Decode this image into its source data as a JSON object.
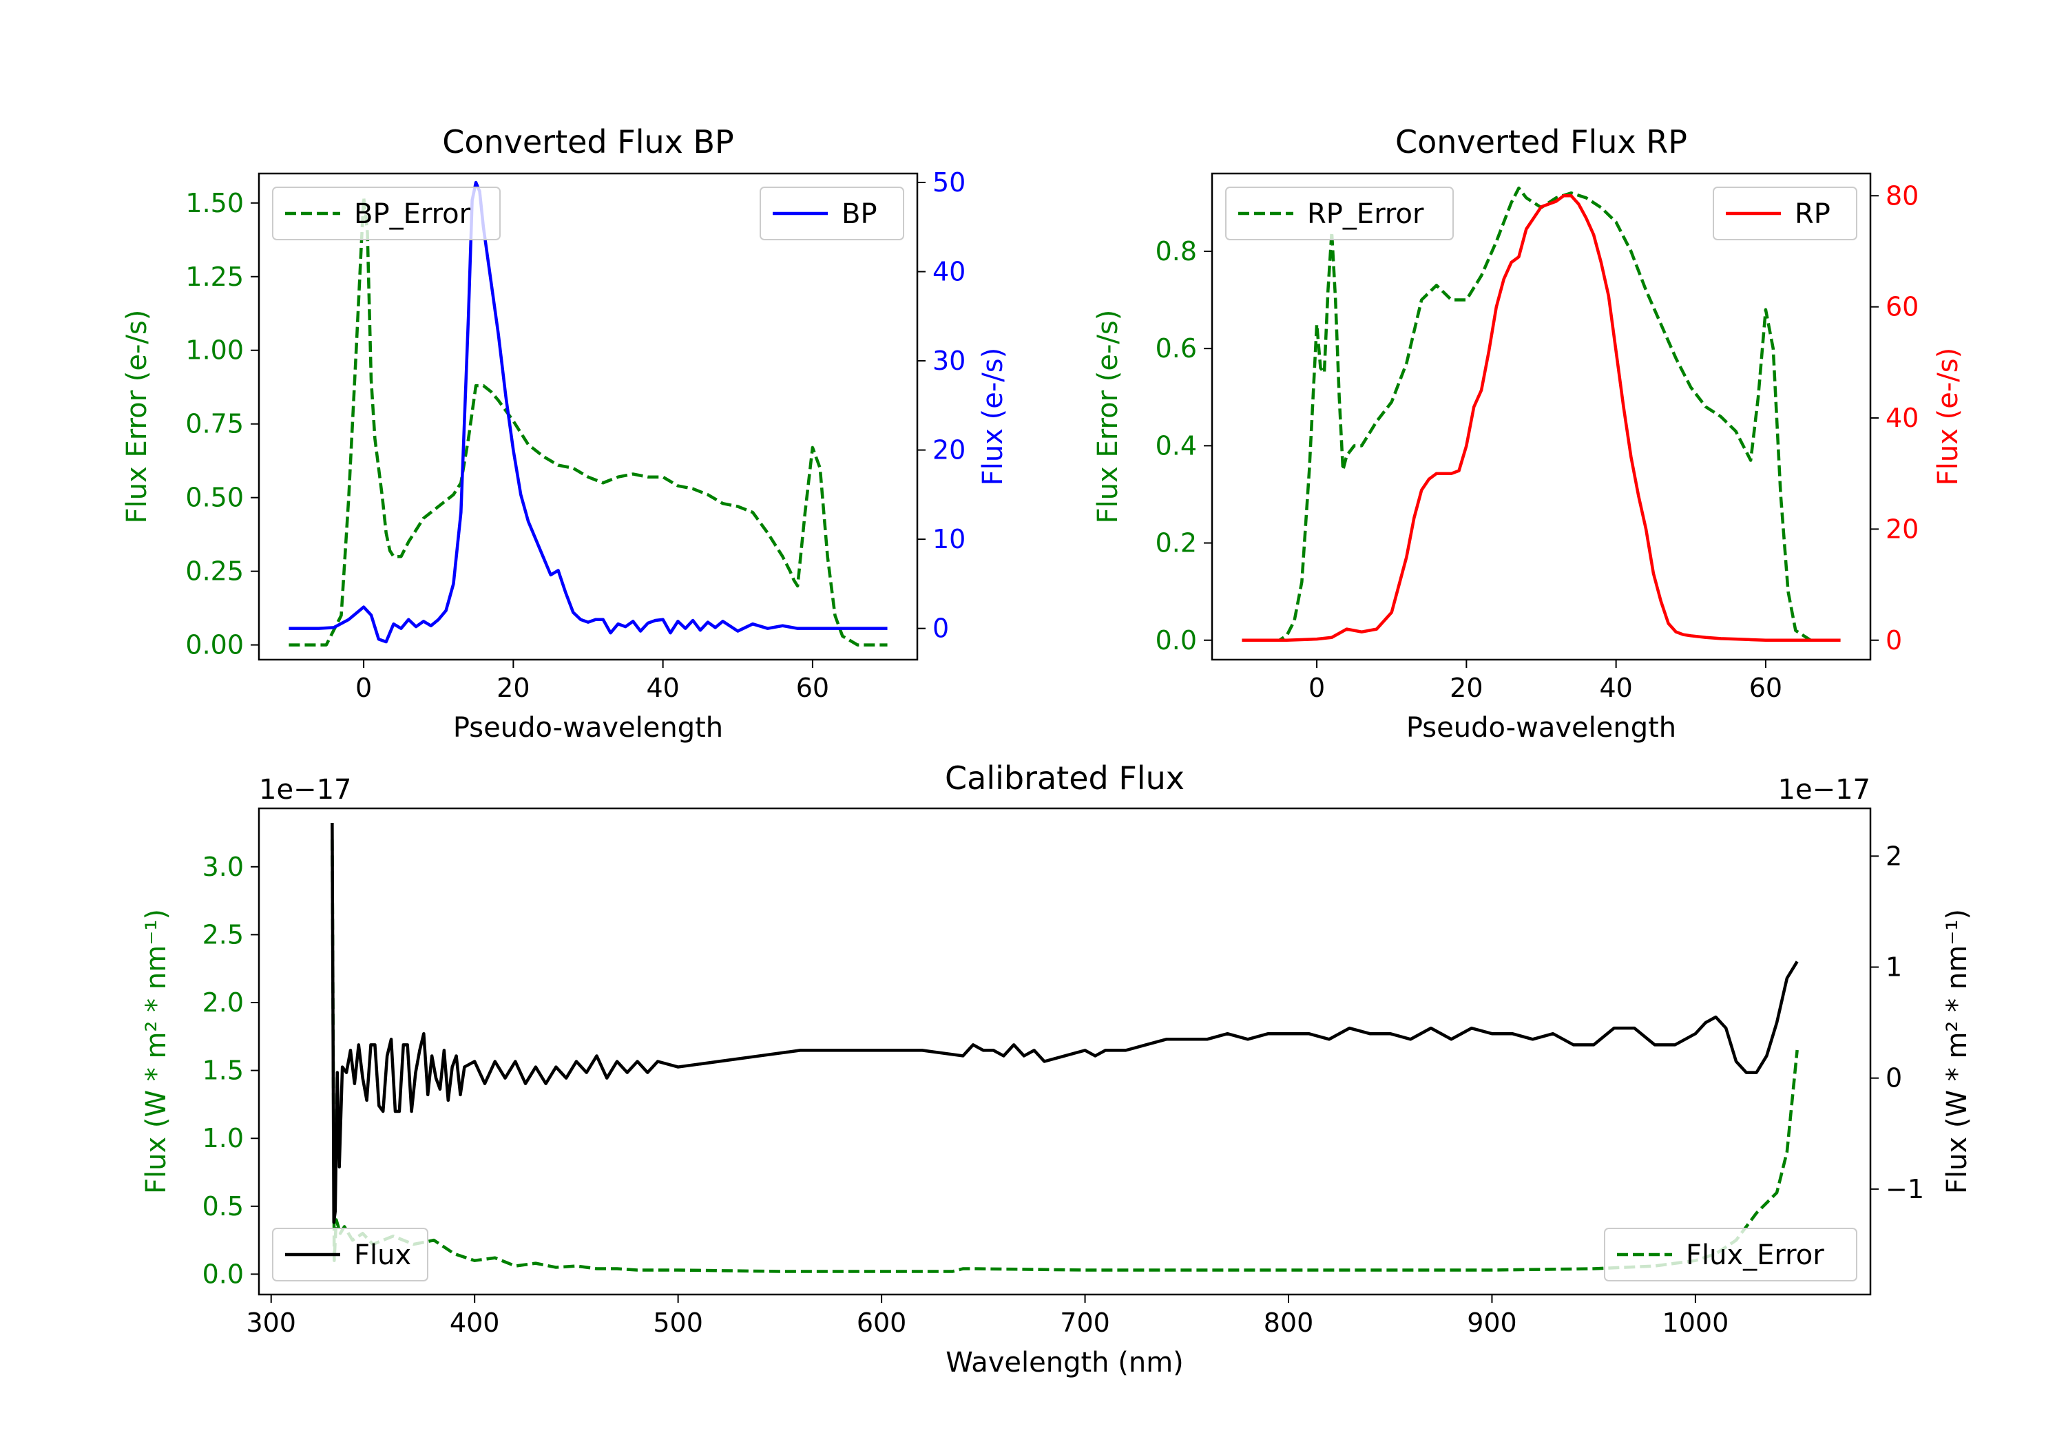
{
  "chart_data": [
    {
      "id": "bp",
      "type": "line",
      "title": "Converted Flux BP",
      "xlabel": "Pseudo-wavelength",
      "xlim": [
        -14,
        74
      ],
      "xticks": [
        0,
        20,
        40,
        60
      ],
      "left_axis": {
        "label": "Flux Error (e-/s)",
        "color": "#008000",
        "ylim": [
          -0.05,
          1.6
        ],
        "ticks": [
          0.0,
          0.25,
          0.5,
          0.75,
          1.0,
          1.25,
          1.5
        ],
        "tick_labels": [
          "0.00",
          "0.25",
          "0.50",
          "0.75",
          "1.00",
          "1.25",
          "1.50"
        ]
      },
      "right_axis": {
        "label": "Flux (e-/s)",
        "color": "#0000ff",
        "ylim": [
          -3.5,
          51
        ],
        "ticks": [
          0,
          10,
          20,
          30,
          40,
          50
        ],
        "tick_labels": [
          "0",
          "10",
          "20",
          "30",
          "40",
          "50"
        ]
      },
      "series": [
        {
          "name": "BP_Error",
          "axis": "left",
          "color": "#008000",
          "dash": true,
          "x": [
            -10,
            -5,
            -3,
            -2,
            -1,
            0,
            0.5,
            1,
            1.5,
            2,
            2.5,
            3,
            3.5,
            4,
            5,
            6,
            8,
            10,
            12,
            13,
            14,
            15,
            16,
            17,
            18,
            20,
            22,
            24,
            26,
            28,
            30,
            32,
            34,
            36,
            38,
            40,
            42,
            44,
            46,
            48,
            50,
            52,
            54,
            56,
            57,
            57.5,
            58,
            59,
            60,
            61,
            62,
            63,
            64,
            66,
            70
          ],
          "y": [
            0,
            0,
            0.1,
            0.5,
            1.0,
            1.52,
            1.4,
            0.9,
            0.7,
            0.6,
            0.5,
            0.38,
            0.32,
            0.3,
            0.3,
            0.35,
            0.43,
            0.47,
            0.51,
            0.55,
            0.7,
            0.88,
            0.88,
            0.86,
            0.83,
            0.76,
            0.68,
            0.64,
            0.61,
            0.6,
            0.57,
            0.55,
            0.57,
            0.58,
            0.57,
            0.57,
            0.54,
            0.53,
            0.51,
            0.48,
            0.47,
            0.45,
            0.38,
            0.3,
            0.25,
            0.22,
            0.2,
            0.45,
            0.67,
            0.6,
            0.3,
            0.1,
            0.03,
            0,
            0
          ]
        },
        {
          "name": "BP",
          "axis": "right",
          "color": "#0000ff",
          "dash": false,
          "x": [
            -10,
            -6,
            -4,
            -2,
            0,
            1,
            2,
            3,
            4,
            5,
            6,
            7,
            8,
            9,
            10,
            11,
            12,
            13,
            14,
            14.5,
            15,
            15.5,
            16,
            17,
            18,
            19,
            20,
            21,
            22,
            23,
            24,
            25,
            26,
            27,
            28,
            29,
            30,
            31,
            32,
            33,
            34,
            35,
            36,
            37,
            38,
            39,
            40,
            41,
            42,
            43,
            44,
            45,
            46,
            47,
            48,
            50,
            52,
            54,
            56,
            58,
            60,
            65,
            70
          ],
          "y": [
            0,
            0,
            0.1,
            1,
            2.4,
            1.5,
            -1.2,
            -1.5,
            0.5,
            0,
            1,
            0.2,
            0.8,
            0.3,
            1,
            2,
            5,
            13,
            35,
            48,
            50,
            49,
            45,
            39,
            33,
            26,
            20,
            15,
            12,
            10,
            8,
            6,
            6.5,
            4,
            1.8,
            1,
            0.7,
            1,
            1,
            -0.5,
            0.5,
            0.2,
            0.8,
            -0.3,
            0.6,
            0.9,
            1,
            -0.5,
            0.8,
            0,
            0.9,
            -0.2,
            0.7,
            0.1,
            0.8,
            -0.3,
            0.5,
            0,
            0.3,
            0,
            0,
            0,
            0
          ]
        }
      ],
      "legends": [
        {
          "position": "upper left",
          "entries": [
            {
              "label": "BP_Error",
              "series": "BP_Error"
            }
          ]
        },
        {
          "position": "upper right",
          "entries": [
            {
              "label": "BP",
              "series": "BP"
            }
          ]
        }
      ]
    },
    {
      "id": "rp",
      "type": "line",
      "title": "Converted Flux RP",
      "xlabel": "Pseudo-wavelength",
      "xlim": [
        -14,
        74
      ],
      "xticks": [
        0,
        20,
        40,
        60
      ],
      "left_axis": {
        "label": "Flux Error (e-/s)",
        "color": "#008000",
        "ylim": [
          -0.04,
          0.96
        ],
        "ticks": [
          0.0,
          0.2,
          0.4,
          0.6,
          0.8
        ],
        "tick_labels": [
          "0.0",
          "0.2",
          "0.4",
          "0.6",
          "0.8"
        ]
      },
      "right_axis": {
        "label": "Flux (e-/s)",
        "color": "#ff0000",
        "ylim": [
          -3.5,
          84
        ],
        "ticks": [
          0,
          20,
          40,
          60,
          80
        ],
        "tick_labels": [
          "0",
          "20",
          "40",
          "60",
          "80"
        ]
      },
      "series": [
        {
          "name": "RP_Error",
          "axis": "left",
          "color": "#008000",
          "dash": true,
          "x": [
            -10,
            -5,
            -4,
            -3,
            -2,
            -1,
            0,
            0.5,
            1,
            1.5,
            2,
            2.5,
            3,
            3.5,
            4,
            5,
            6,
            8,
            10,
            12,
            14,
            16,
            18,
            20,
            22,
            24,
            26,
            27,
            28,
            30,
            32,
            34,
            36,
            38,
            40,
            42,
            44,
            46,
            48,
            50,
            52,
            54,
            56,
            57,
            58,
            59,
            60,
            61,
            62,
            63,
            64,
            66,
            70
          ],
          "y": [
            0,
            0,
            0.01,
            0.04,
            0.12,
            0.35,
            0.65,
            0.56,
            0.55,
            0.72,
            0.84,
            0.7,
            0.5,
            0.35,
            0.38,
            0.4,
            0.4,
            0.45,
            0.49,
            0.57,
            0.7,
            0.73,
            0.7,
            0.7,
            0.75,
            0.82,
            0.9,
            0.93,
            0.91,
            0.89,
            0.91,
            0.92,
            0.91,
            0.89,
            0.86,
            0.8,
            0.72,
            0.65,
            0.58,
            0.52,
            0.48,
            0.46,
            0.43,
            0.4,
            0.37,
            0.5,
            0.68,
            0.6,
            0.3,
            0.1,
            0.02,
            0,
            0
          ]
        },
        {
          "name": "RP",
          "axis": "right",
          "color": "#ff0000",
          "dash": false,
          "x": [
            -10,
            -4,
            0,
            2,
            4,
            6,
            8,
            10,
            12,
            13,
            14,
            15,
            16,
            18,
            19,
            20,
            21,
            22,
            23,
            24,
            25,
            26,
            27,
            28,
            29,
            30,
            31,
            32,
            33,
            34,
            35,
            36,
            37,
            38,
            39,
            40,
            41,
            42,
            43,
            44,
            45,
            46,
            47,
            48,
            49,
            50,
            52,
            54,
            56,
            58,
            60,
            62,
            64,
            66,
            70
          ],
          "y": [
            0,
            0,
            0.2,
            0.5,
            2,
            1.5,
            2,
            5,
            15,
            22,
            27,
            29,
            30,
            30,
            30.5,
            35,
            42,
            45,
            52,
            60,
            65,
            68,
            69,
            74,
            76,
            78,
            78.5,
            79,
            80,
            80,
            78.5,
            76,
            73,
            68,
            62,
            52,
            42,
            33,
            26,
            20,
            12,
            7,
            3,
            1.5,
            1,
            0.8,
            0.5,
            0.3,
            0.2,
            0.1,
            0,
            0,
            0,
            0,
            0
          ]
        }
      ],
      "legends": [
        {
          "position": "upper left",
          "entries": [
            {
              "label": "RP_Error",
              "series": "RP_Error"
            }
          ]
        },
        {
          "position": "upper right",
          "entries": [
            {
              "label": "RP",
              "series": "RP"
            }
          ]
        }
      ]
    },
    {
      "id": "cal",
      "type": "line",
      "title": "Calibrated Flux",
      "xlabel": "Wavelength (nm)",
      "xlim": [
        294,
        1086
      ],
      "xticks": [
        300,
        400,
        500,
        600,
        700,
        800,
        900,
        1000
      ],
      "left_axis": {
        "label": "Flux (W * m² * nm⁻¹)",
        "color": "#008000",
        "offset_text": "1e−17",
        "ylim": [
          -0.15,
          3.43
        ],
        "ticks": [
          0.0,
          0.5,
          1.0,
          1.5,
          2.0,
          2.5,
          3.0
        ],
        "tick_labels": [
          "0.0",
          "0.5",
          "1.0",
          "1.5",
          "2.0",
          "2.5",
          "3.0"
        ]
      },
      "right_axis": {
        "label": "Flux (W * m² * nm⁻¹)",
        "color": "#000000",
        "offset_text": "1e−17",
        "ylim": [
          -1.95,
          2.43
        ],
        "ticks": [
          -1,
          0,
          1,
          2
        ],
        "tick_labels": [
          "−1",
          "0",
          "1",
          "2"
        ]
      },
      "series": [
        {
          "name": "Flux_Error",
          "axis": "left",
          "color": "#008000",
          "dash": true,
          "x": [
            330,
            331,
            332,
            334,
            336,
            340,
            345,
            350,
            360,
            370,
            380,
            390,
            400,
            410,
            420,
            430,
            440,
            450,
            460,
            470,
            480,
            500,
            550,
            600,
            635,
            640,
            645,
            700,
            800,
            900,
            950,
            980,
            1000,
            1010,
            1020,
            1030,
            1040,
            1045,
            1050
          ],
          "y": [
            3.2,
            0.1,
            0.4,
            0.3,
            0.35,
            0.25,
            0.3,
            0.22,
            0.28,
            0.22,
            0.25,
            0.15,
            0.1,
            0.12,
            0.06,
            0.08,
            0.05,
            0.06,
            0.04,
            0.04,
            0.03,
            0.03,
            0.02,
            0.02,
            0.02,
            0.04,
            0.04,
            0.03,
            0.03,
            0.03,
            0.04,
            0.06,
            0.1,
            0.15,
            0.25,
            0.45,
            0.6,
            0.9,
            1.65
          ]
        },
        {
          "name": "Flux",
          "axis": "right",
          "color": "#000000",
          "dash": false,
          "x": [
            330,
            330.8,
            331.5,
            332.5,
            333.5,
            335,
            337,
            339,
            341,
            343,
            345,
            347,
            349,
            351,
            353,
            355,
            357,
            359,
            361,
            363,
            365,
            367,
            369,
            371,
            373,
            375,
            377,
            379,
            381,
            383,
            385,
            387,
            389,
            391,
            393,
            395,
            400,
            405,
            410,
            415,
            420,
            425,
            430,
            435,
            440,
            445,
            450,
            455,
            460,
            465,
            470,
            475,
            480,
            485,
            490,
            500,
            520,
            540,
            560,
            600,
            620,
            640,
            645,
            650,
            655,
            660,
            665,
            670,
            675,
            680,
            690,
            700,
            705,
            710,
            720,
            730,
            740,
            750,
            760,
            770,
            780,
            790,
            800,
            810,
            820,
            830,
            840,
            850,
            860,
            870,
            880,
            890,
            900,
            910,
            920,
            930,
            940,
            950,
            960,
            970,
            980,
            990,
            1000,
            1005,
            1010,
            1015,
            1020,
            1025,
            1030,
            1035,
            1040,
            1045,
            1050
          ],
          "y": [
            2.3,
            -1.3,
            -1.2,
            0.05,
            -0.8,
            0.1,
            0.05,
            0.25,
            -0.05,
            0.3,
            0,
            -0.2,
            0.3,
            0.3,
            -0.25,
            -0.3,
            0.2,
            0.35,
            -0.3,
            -0.3,
            0.3,
            0.3,
            -0.3,
            0.05,
            0.25,
            0.4,
            -0.15,
            0.2,
            0,
            -0.1,
            0.25,
            -0.2,
            0.1,
            0.2,
            -0.15,
            0.1,
            0.15,
            -0.05,
            0.15,
            0,
            0.15,
            -0.05,
            0.1,
            -0.05,
            0.1,
            0,
            0.15,
            0.05,
            0.2,
            0,
            0.15,
            0.05,
            0.15,
            0.05,
            0.15,
            0.1,
            0.15,
            0.2,
            0.25,
            0.25,
            0.25,
            0.2,
            0.3,
            0.25,
            0.25,
            0.2,
            0.3,
            0.2,
            0.25,
            0.15,
            0.2,
            0.25,
            0.2,
            0.25,
            0.25,
            0.3,
            0.35,
            0.35,
            0.35,
            0.4,
            0.35,
            0.4,
            0.4,
            0.4,
            0.35,
            0.45,
            0.4,
            0.4,
            0.35,
            0.45,
            0.35,
            0.45,
            0.4,
            0.4,
            0.35,
            0.4,
            0.3,
            0.3,
            0.45,
            0.45,
            0.3,
            0.3,
            0.4,
            0.5,
            0.55,
            0.45,
            0.15,
            0.05,
            0.05,
            0.2,
            0.5,
            0.9,
            1.05
          ]
        }
      ],
      "legends": [
        {
          "position": "lower left",
          "entries": [
            {
              "label": "Flux",
              "series": "Flux"
            }
          ]
        },
        {
          "position": "lower right",
          "entries": [
            {
              "label": "Flux_Error",
              "series": "Flux_Error"
            }
          ]
        }
      ]
    }
  ]
}
